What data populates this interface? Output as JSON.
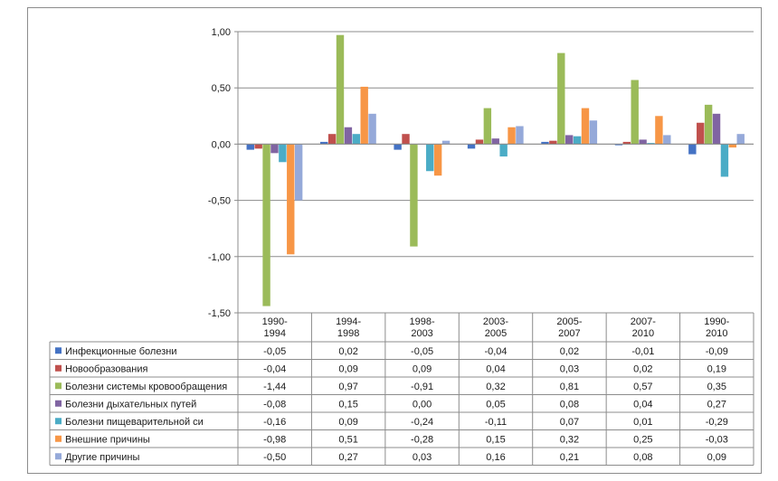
{
  "chart_data": {
    "type": "bar",
    "categories": [
      [
        "1990-",
        "1994"
      ],
      [
        "1994-",
        "1998"
      ],
      [
        "1998-",
        "2003"
      ],
      [
        "2003-",
        "2005"
      ],
      [
        "2005-",
        "2007"
      ],
      [
        "2007-",
        "2010"
      ],
      [
        "1990-",
        "2010"
      ]
    ],
    "ylim": [
      -1.5,
      1.0
    ],
    "yticks": [
      1.0,
      0.5,
      0.0,
      -0.5,
      -1.0,
      -1.5
    ],
    "ytick_labels": [
      "1,00",
      "0,50",
      "0,00",
      "-0,50",
      "-1,00",
      "-1,50"
    ],
    "grid": true,
    "legend_placement": "data-table-left",
    "series": [
      {
        "name": "Инфекционные болезни",
        "color": "#4472C4",
        "values": [
          -0.05,
          0.02,
          -0.05,
          -0.04,
          0.02,
          -0.01,
          -0.09
        ],
        "labels": [
          "-0,05",
          "0,02",
          "-0,05",
          "-0,04",
          "0,02",
          "-0,01",
          "-0,09"
        ]
      },
      {
        "name": "Новообразования",
        "color": "#C0504D",
        "values": [
          -0.04,
          0.09,
          0.09,
          0.04,
          0.03,
          0.02,
          0.19
        ],
        "labels": [
          "-0,04",
          "0,09",
          "0,09",
          "0,04",
          "0,03",
          "0,02",
          "0,19"
        ]
      },
      {
        "name": "Болезни системы кровообращения",
        "color": "#9BBB59",
        "values": [
          -1.44,
          0.97,
          -0.91,
          0.32,
          0.81,
          0.57,
          0.35
        ],
        "labels": [
          "-1,44",
          "0,97",
          "-0,91",
          "0,32",
          "0,81",
          "0,57",
          "0,35"
        ]
      },
      {
        "name": "Болезни дыхательных путей",
        "color": "#8064A2",
        "values": [
          -0.08,
          0.15,
          0.0,
          0.05,
          0.08,
          0.04,
          0.27
        ],
        "labels": [
          "-0,08",
          "0,15",
          "0,00",
          "0,05",
          "0,08",
          "0,04",
          "0,27"
        ]
      },
      {
        "name": "Болезни пищеварительной си",
        "color": "#4BACC6",
        "values": [
          -0.16,
          0.09,
          -0.24,
          -0.11,
          0.07,
          0.01,
          -0.29
        ],
        "labels": [
          "-0,16",
          "0,09",
          "-0,24",
          "-0,11",
          "0,07",
          "0,01",
          "-0,29"
        ]
      },
      {
        "name": "Внешние причины",
        "color": "#F79646",
        "values": [
          -0.98,
          0.51,
          -0.28,
          0.15,
          0.32,
          0.25,
          -0.03
        ],
        "labels": [
          "-0,98",
          "0,51",
          "-0,28",
          "0,15",
          "0,32",
          "0,25",
          "-0,03"
        ]
      },
      {
        "name": "Другие причины",
        "color": "#95A9D9",
        "values": [
          -0.5,
          0.27,
          0.03,
          0.16,
          0.21,
          0.08,
          0.09
        ],
        "labels": [
          "-0,50",
          "0,27",
          "0,03",
          "0,16",
          "0,21",
          "0,08",
          "0,09"
        ]
      }
    ]
  }
}
